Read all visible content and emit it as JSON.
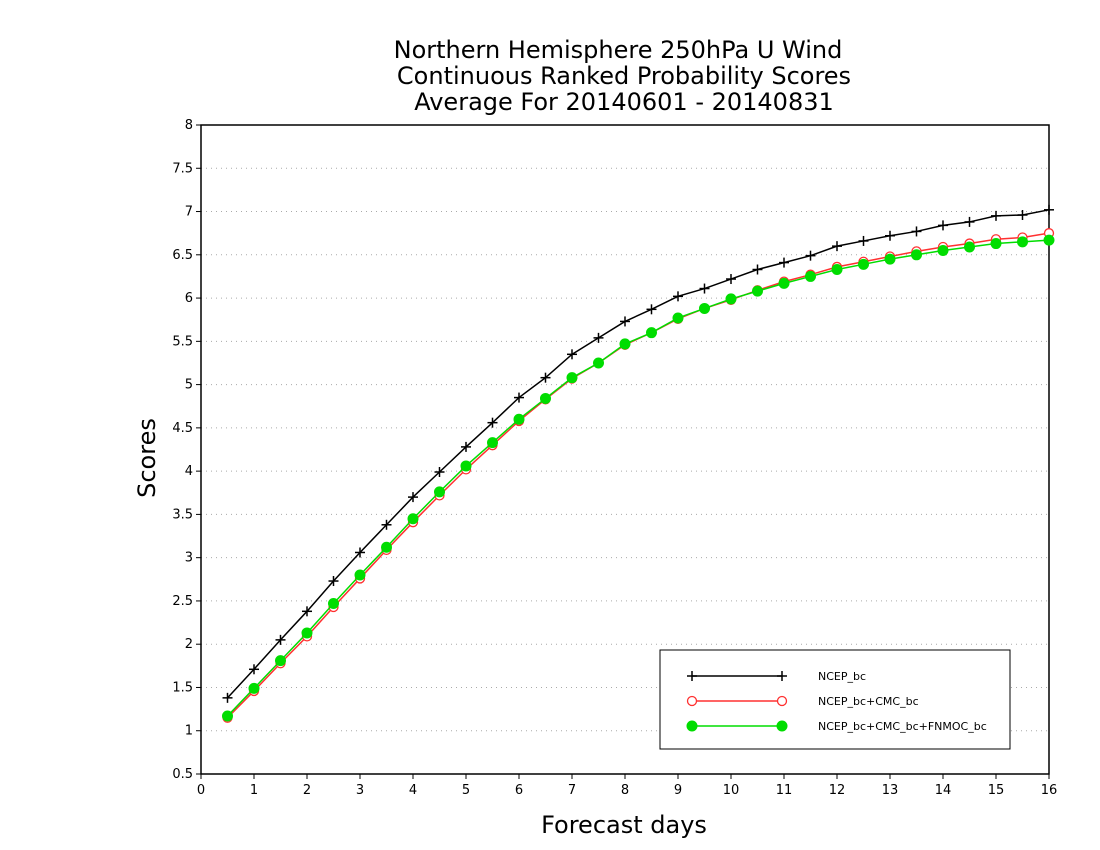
{
  "chart_data": {
    "type": "line",
    "title": [
      "Northern Hemisphere 250hPa U Wind",
      "Continuous Ranked Probability Scores",
      "Average For 20140601 - 20140831"
    ],
    "xlabel": "Forecast days",
    "ylabel": "Scores",
    "xlim": [
      0,
      16
    ],
    "ylim": [
      0.5,
      8
    ],
    "xticks": [
      0,
      1,
      2,
      3,
      4,
      5,
      6,
      7,
      8,
      9,
      10,
      11,
      12,
      13,
      14,
      15,
      16
    ],
    "yticks": [
      0.5,
      1,
      1.5,
      2,
      2.5,
      3,
      3.5,
      4,
      4.5,
      5,
      5.5,
      6,
      6.5,
      7,
      7.5,
      8
    ],
    "ytick_labels": [
      "0.5",
      "1",
      "1.5",
      "2",
      "2.5",
      "3",
      "3.5",
      "4",
      "4.5",
      "5",
      "5.5",
      "6",
      "6.5",
      "7",
      "7.5",
      "8"
    ],
    "grid": "horizontal dotted",
    "legend_position": "bottom-right",
    "x": [
      0.5,
      1,
      1.5,
      2,
      2.5,
      3,
      3.5,
      4,
      4.5,
      5,
      5.5,
      6,
      6.5,
      7,
      7.5,
      8,
      8.5,
      9,
      9.5,
      10,
      10.5,
      11,
      11.5,
      12,
      12.5,
      13,
      13.5,
      14,
      14.5,
      15,
      15.5,
      16
    ],
    "series": [
      {
        "name": "NCEP_bc",
        "color": "#000000",
        "marker": "plus",
        "values": [
          1.38,
          1.71,
          2.05,
          2.38,
          2.73,
          3.06,
          3.38,
          3.7,
          3.99,
          4.28,
          4.56,
          4.85,
          5.08,
          5.35,
          5.54,
          5.73,
          5.87,
          6.02,
          6.11,
          6.22,
          6.33,
          6.41,
          6.49,
          6.6,
          6.66,
          6.72,
          6.77,
          6.84,
          6.88,
          6.95,
          6.96,
          7.02
        ]
      },
      {
        "name": "NCEP_bc+CMC_bc",
        "color": "#ff3030",
        "marker": "open-circle",
        "values": [
          1.15,
          1.46,
          1.78,
          2.09,
          2.43,
          2.76,
          3.09,
          3.41,
          3.72,
          4.02,
          4.3,
          4.58,
          4.83,
          5.07,
          5.25,
          5.46,
          5.6,
          5.76,
          5.88,
          5.98,
          6.09,
          6.19,
          6.27,
          6.36,
          6.42,
          6.48,
          6.54,
          6.59,
          6.63,
          6.68,
          6.7,
          6.75
        ]
      },
      {
        "name": "NCEP_bc+CMC_bc+FNMOC_bc",
        "color": "#00dd00",
        "marker": "filled-circle",
        "values": [
          1.17,
          1.49,
          1.81,
          2.13,
          2.47,
          2.8,
          3.12,
          3.45,
          3.76,
          4.06,
          4.33,
          4.6,
          4.84,
          5.08,
          5.25,
          5.47,
          5.6,
          5.77,
          5.88,
          5.99,
          6.08,
          6.17,
          6.25,
          6.33,
          6.39,
          6.45,
          6.5,
          6.55,
          6.59,
          6.63,
          6.65,
          6.67
        ]
      }
    ]
  }
}
